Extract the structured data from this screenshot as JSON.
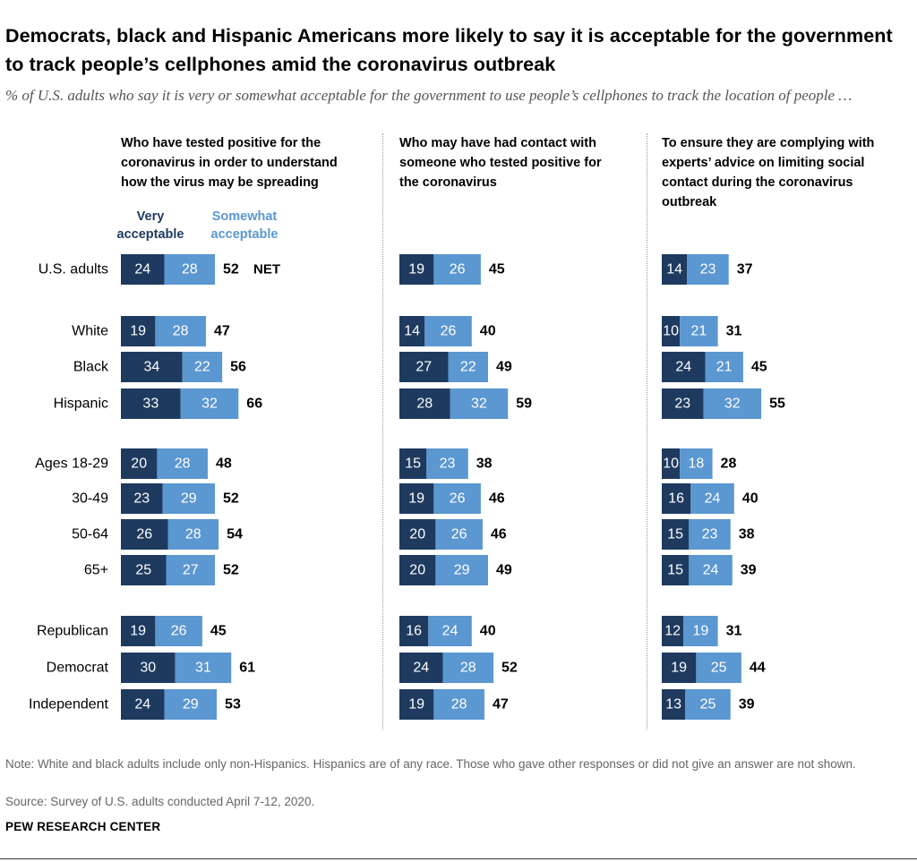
{
  "title": "Democrats, black and Hispanic Americans more likely to say it is acceptable for the government to track people’s cellphones amid the coronavirus outbreak",
  "subtitle": "% of U.S. adults who say it is very or somewhat acceptable for the government to use people’s cellphones to track the location of people …",
  "legend": {
    "very": "Very acceptable",
    "somewhat": "Somewhat acceptable"
  },
  "net_label": "NET",
  "note": "Note: White and black adults include only non-Hispanics. Hispanics are of any race. Those who gave other responses or did not give an answer are not shown.",
  "source": "Source: Survey of U.S. adults conducted April 7-12, 2020.",
  "brand": "PEW RESEARCH CENTER",
  "colors": {
    "very": "#1e3a5f",
    "somewhat": "#5b97d1",
    "text_light": "#ffffff",
    "text_dark": "#000000"
  },
  "chart_data": {
    "type": "bar",
    "stacked": true,
    "orientation": "horizontal",
    "categories": [
      "U.S. adults",
      "White",
      "Black",
      "Hispanic",
      "Ages 18-29",
      "30-49",
      "50-64",
      "65+",
      "Republican",
      "Democrat",
      "Independent"
    ],
    "panels": [
      {
        "title": "Who have tested positive for the coronavirus in order to understand how the virus may be spreading",
        "series": [
          {
            "name": "Very acceptable",
            "values": [
              24,
              19,
              34,
              33,
              20,
              23,
              26,
              25,
              19,
              30,
              24
            ]
          },
          {
            "name": "Somewhat acceptable",
            "values": [
              28,
              28,
              22,
              32,
              28,
              29,
              28,
              27,
              26,
              31,
              29
            ]
          }
        ],
        "net": [
          52,
          47,
          56,
          66,
          48,
          52,
          54,
          52,
          45,
          61,
          53
        ]
      },
      {
        "title": "Who may have had contact with someone who tested positive for the coronavirus",
        "series": [
          {
            "name": "Very acceptable",
            "values": [
              19,
              14,
              27,
              28,
              15,
              19,
              20,
              20,
              16,
              24,
              19
            ]
          },
          {
            "name": "Somewhat acceptable",
            "values": [
              26,
              26,
              22,
              32,
              23,
              26,
              26,
              29,
              24,
              28,
              28
            ]
          }
        ],
        "net": [
          45,
          40,
          49,
          59,
          38,
          46,
          46,
          49,
          40,
          52,
          47
        ]
      },
      {
        "title": "To ensure they are complying with experts’ advice on limiting social contact during the coronavirus outbreak",
        "series": [
          {
            "name": "Very acceptable",
            "values": [
              14,
              10,
              24,
              23,
              10,
              16,
              15,
              15,
              12,
              19,
              13
            ]
          },
          {
            "name": "Somewhat acceptable",
            "values": [
              23,
              21,
              21,
              32,
              18,
              24,
              23,
              24,
              19,
              25,
              25
            ]
          }
        ],
        "net": [
          37,
          31,
          45,
          55,
          28,
          40,
          38,
          39,
          31,
          44,
          39
        ]
      }
    ]
  }
}
